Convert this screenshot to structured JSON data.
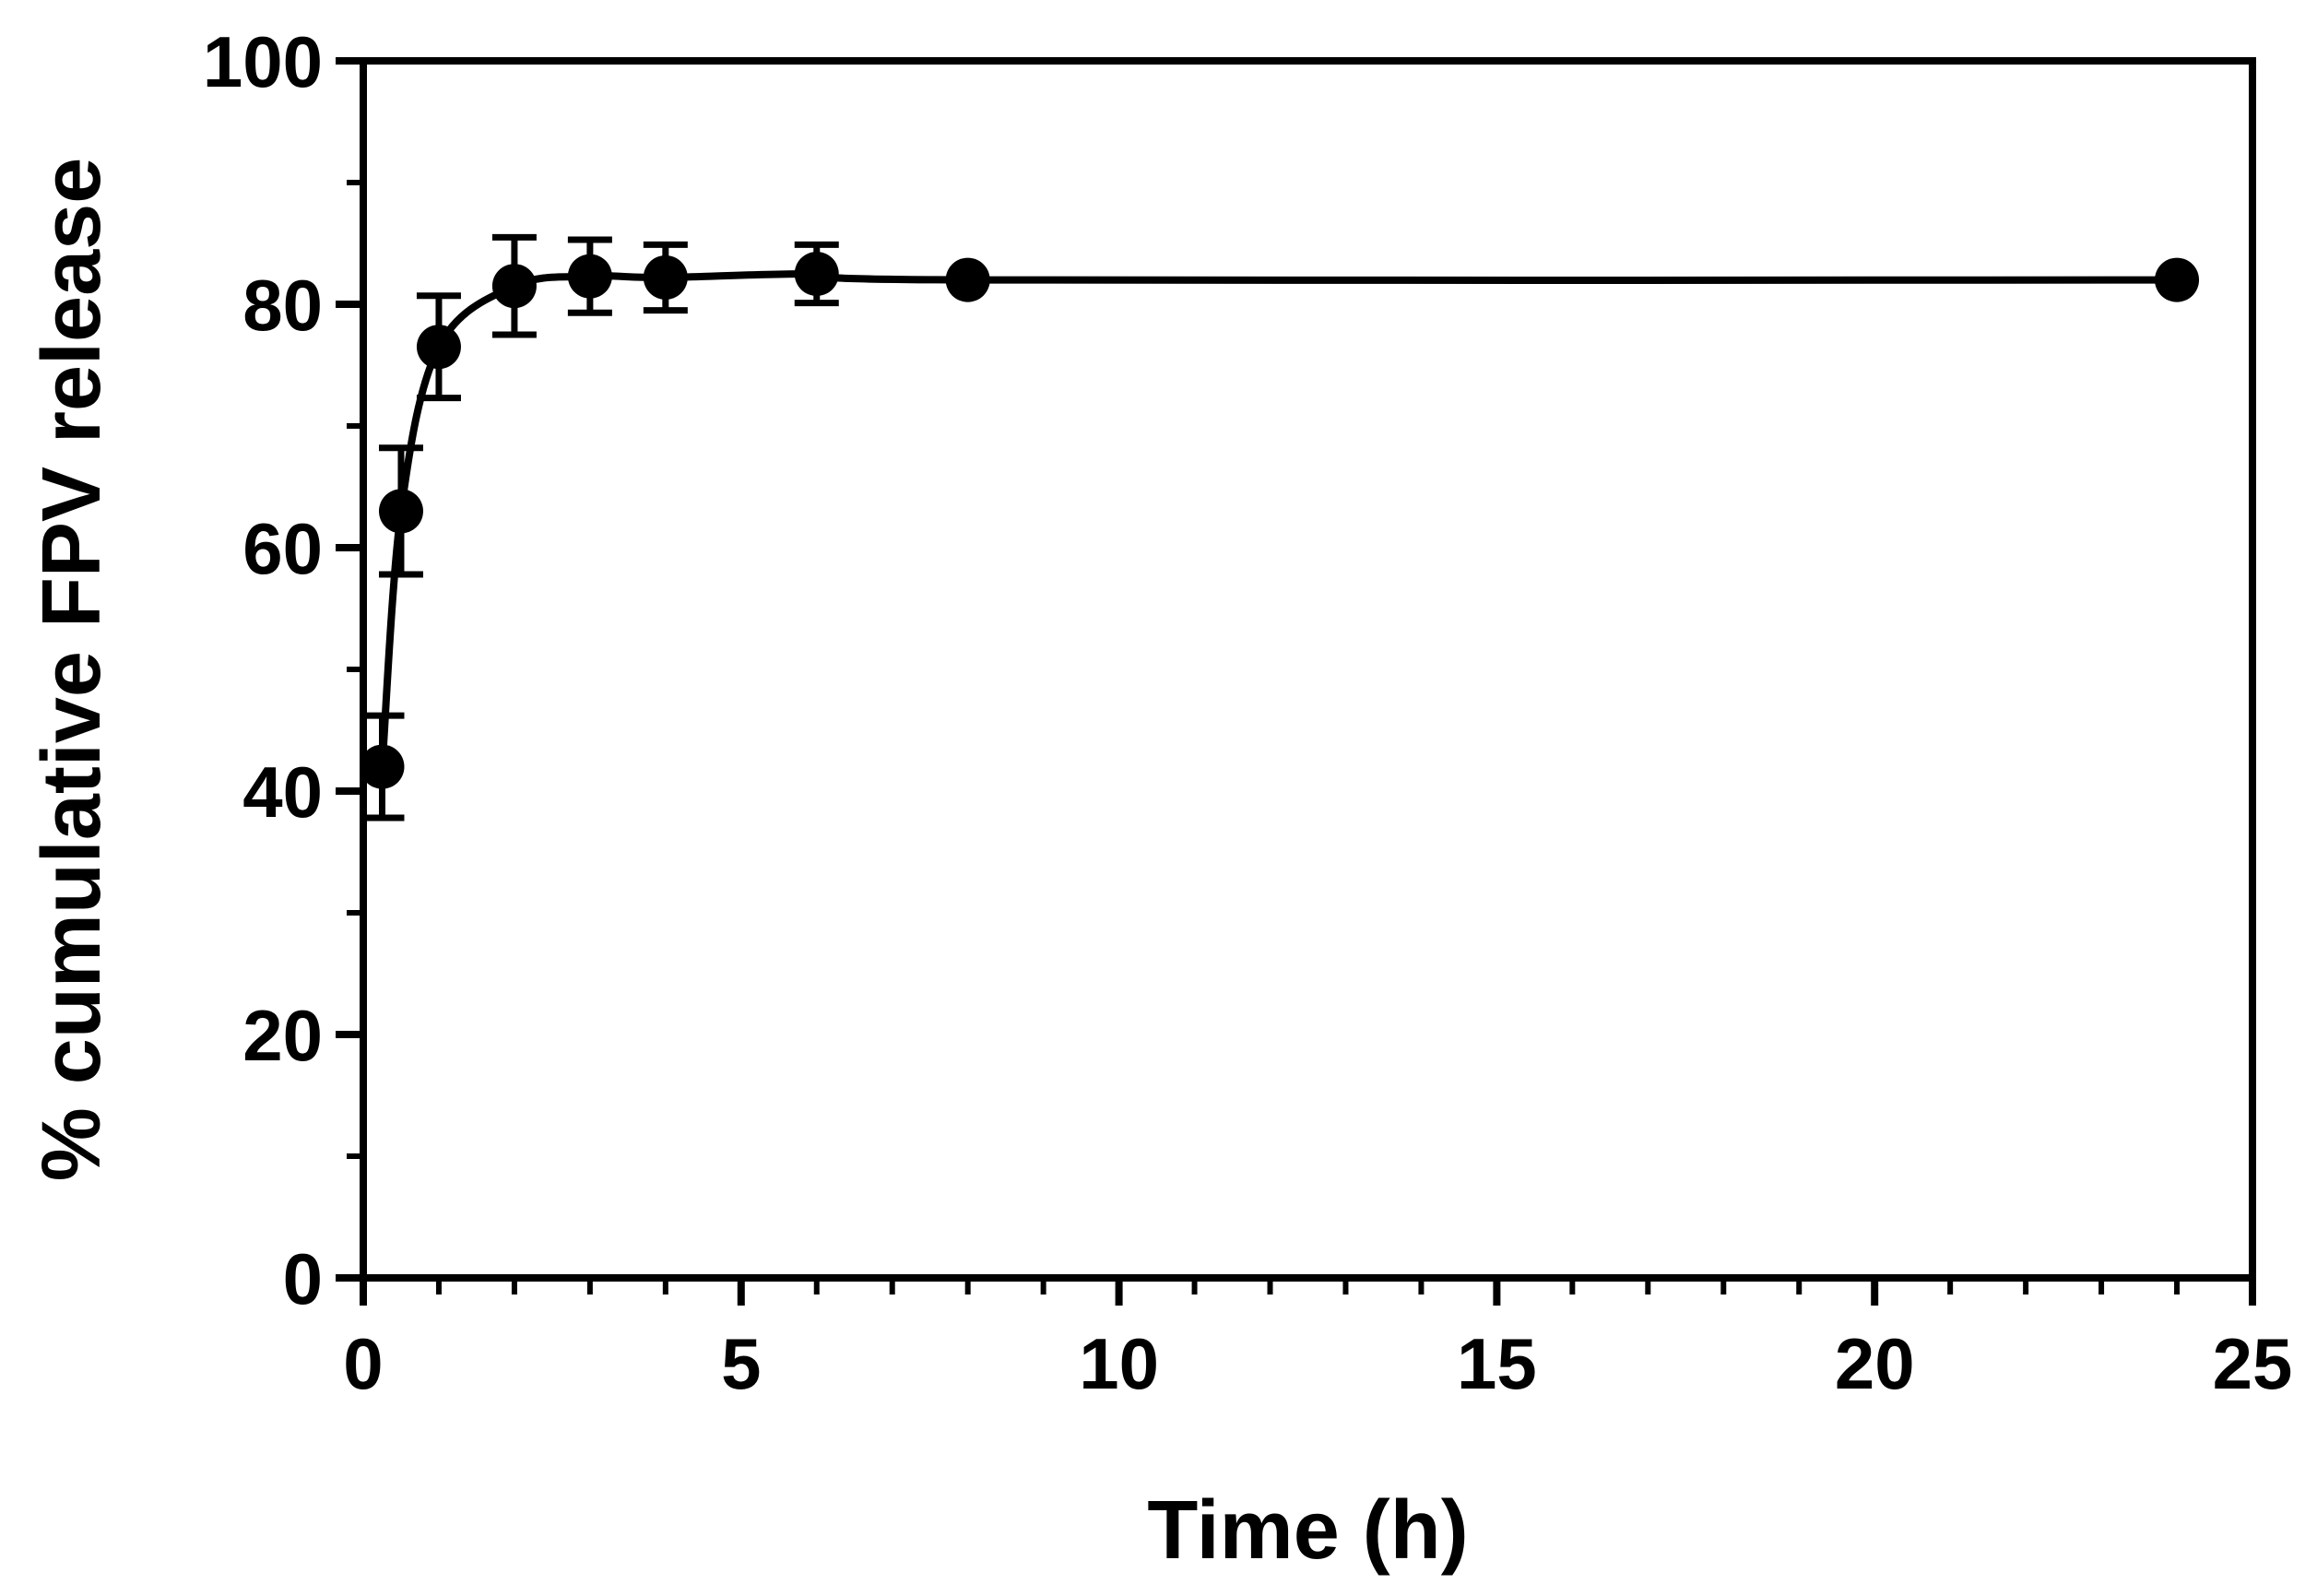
{
  "chart_data": {
    "type": "line",
    "title": "",
    "xlabel": "Time (h)",
    "ylabel": "% cumulative FPV release",
    "xlim": [
      0,
      25
    ],
    "ylim": [
      0,
      100
    ],
    "x_major_ticks": [
      0,
      5,
      10,
      15,
      20,
      25
    ],
    "x_tick_labels": [
      "0",
      "5",
      "10",
      "15",
      "20",
      "25"
    ],
    "x_minor_ticks": [
      1,
      2,
      3,
      4,
      6,
      7,
      8,
      9,
      11,
      12,
      13,
      14,
      16,
      17,
      18,
      19,
      21,
      22,
      23,
      24
    ],
    "y_major_ticks": [
      0,
      20,
      40,
      60,
      80,
      100
    ],
    "y_tick_labels": [
      "0",
      "20",
      "40",
      "60",
      "80",
      "100"
    ],
    "y_minor_ticks": [
      10,
      30,
      50,
      70,
      90
    ],
    "grid": false,
    "legend": "none",
    "colors": {
      "series": "#000000",
      "axes": "#000000"
    },
    "series": [
      {
        "x": [
          0.25,
          0.5,
          1,
          2,
          3,
          4,
          6,
          8,
          24
        ],
        "y": [
          42,
          63,
          76.5,
          81.5,
          82.3,
          82.2,
          82.5,
          82,
          82
        ],
        "error": [
          4.2,
          5.2,
          4.2,
          4.0,
          3.0,
          2.7,
          2.4,
          0,
          0
        ]
      }
    ]
  }
}
